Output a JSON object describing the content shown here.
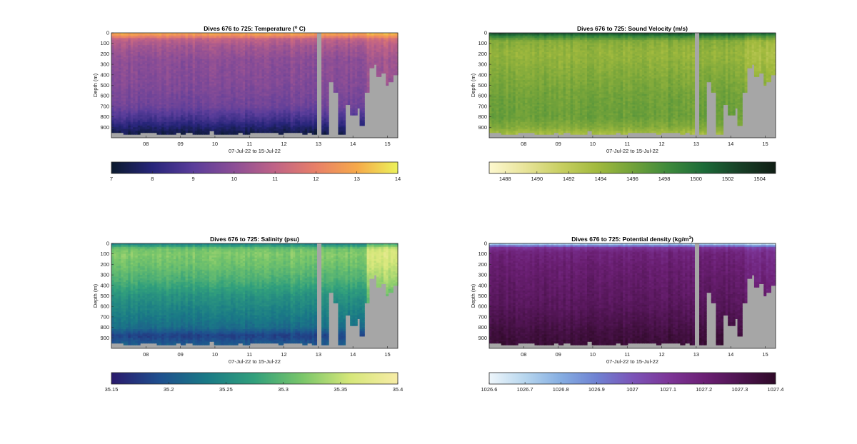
{
  "figure": {
    "x_axis_label": "07-Jul-22 to 15-Jul-22",
    "y_axis_label": "Depth (m)",
    "x_tick_labels": [
      "08",
      "09",
      "10",
      "11",
      "12",
      "13",
      "14",
      "15"
    ],
    "y_tick_labels": [
      "0",
      "100",
      "200",
      "300",
      "400",
      "500",
      "600",
      "700",
      "800",
      "900"
    ]
  },
  "chart_data": [
    {
      "type": "heatmap",
      "title": "Dives 676 to 725: Temperature (",
      "title_sup": "o",
      "title_tail": " C)",
      "variable": "temperature",
      "xlabel": "07-Jul-22 to 15-Jul-22",
      "ylabel": "Depth (m)",
      "x_range_days": [
        7.0,
        15.3
      ],
      "ylim": [
        0,
        1000
      ],
      "x_ticks": [
        8,
        9,
        10,
        11,
        12,
        13,
        14,
        15
      ],
      "y_ticks": [
        0,
        100,
        200,
        300,
        400,
        500,
        600,
        700,
        800,
        900
      ],
      "colorbar": {
        "range": [
          7,
          14
        ],
        "ticks": [
          7,
          8,
          9,
          10,
          11,
          12,
          13,
          14
        ],
        "tick_labels": [
          "7",
          "8",
          "9",
          "10",
          "11",
          "12",
          "13",
          "14"
        ],
        "colors": [
          "#0b1a2e",
          "#27257a",
          "#5a3d9a",
          "#8c4e96",
          "#c06386",
          "#e88068",
          "#f6a94a",
          "#ecf25a"
        ]
      },
      "profile": {
        "depth": [
          0,
          30,
          60,
          120,
          250,
          500,
          700,
          800,
          850,
          900,
          950,
          1000
        ],
        "value": [
          13.0,
          12.3,
          11.0,
          10.5,
          10.0,
          9.8,
          9.4,
          8.7,
          8.3,
          7.8,
          7.4,
          7.2
        ]
      }
    },
    {
      "type": "heatmap",
      "title": "Dives 676 to 725: Sound Velocity (m/s)",
      "title_sup": "",
      "title_tail": "",
      "variable": "sound_velocity",
      "xlabel": "07-Jul-22 to 15-Jul-22",
      "ylabel": "Depth (m)",
      "x_range_days": [
        7.0,
        15.3
      ],
      "ylim": [
        0,
        1000
      ],
      "x_ticks": [
        8,
        9,
        10,
        11,
        12,
        13,
        14,
        15
      ],
      "y_ticks": [
        0,
        100,
        200,
        300,
        400,
        500,
        600,
        700,
        800,
        900
      ],
      "colorbar": {
        "range": [
          1487,
          1505
        ],
        "ticks": [
          1488,
          1490,
          1492,
          1494,
          1496,
          1498,
          1500,
          1502,
          1504
        ],
        "tick_labels": [
          "1488",
          "1490",
          "1492",
          "1494",
          "1496",
          "1498",
          "1500",
          "1502",
          "1504"
        ],
        "colors": [
          "#fdf8cf",
          "#e8e49a",
          "#c8cf62",
          "#a2ba3e",
          "#72a23a",
          "#3e8a3c",
          "#1c6a38",
          "#173f26",
          "#101d14"
        ]
      },
      "profile": {
        "depth": [
          0,
          15,
          40,
          80,
          200,
          400,
          600,
          800,
          900,
          960,
          1000
        ],
        "value": [
          1503.0,
          1500.5,
          1498.0,
          1495.0,
          1494.3,
          1495.2,
          1496.0,
          1496.3,
          1495.2,
          1493.5,
          1492.0
        ]
      }
    },
    {
      "type": "heatmap",
      "title": "Dives 676 to 725: Salinity (psu)",
      "title_sup": "",
      "title_tail": "",
      "variable": "salinity",
      "xlabel": "07-Jul-22 to 15-Jul-22",
      "ylabel": "Depth (m)",
      "x_range_days": [
        7.0,
        15.3
      ],
      "ylim": [
        0,
        1000
      ],
      "x_ticks": [
        8,
        9,
        10,
        11,
        12,
        13,
        14,
        15
      ],
      "y_ticks": [
        0,
        100,
        200,
        300,
        400,
        500,
        600,
        700,
        800,
        900
      ],
      "colorbar": {
        "range": [
          35.15,
          35.4
        ],
        "ticks": [
          35.15,
          35.2,
          35.25,
          35.3,
          35.35,
          35.4
        ],
        "tick_labels": [
          "35.15",
          "35.2",
          "35.25",
          "35.3",
          "35.35",
          "35.4"
        ],
        "colors": [
          "#2a1a6c",
          "#1f4f8e",
          "#1a7a86",
          "#32a07c",
          "#7ac66a",
          "#d6e77a",
          "#f7eca6"
        ]
      },
      "profile": {
        "depth": [
          0,
          20,
          50,
          100,
          200,
          350,
          500,
          650,
          800,
          880,
          950,
          1000
        ],
        "value": [
          35.23,
          35.27,
          35.31,
          35.32,
          35.31,
          35.29,
          35.26,
          35.24,
          35.22,
          35.18,
          35.2,
          35.21
        ]
      }
    },
    {
      "type": "heatmap",
      "title": "Dives 676 to 725: Potential density (kg/m",
      "title_sup": "3",
      "title_tail": ")",
      "variable": "potential_density",
      "xlabel": "07-Jul-22 to 15-Jul-22",
      "ylabel": "Depth (m)",
      "x_range_days": [
        7.0,
        15.3
      ],
      "ylim": [
        0,
        1000
      ],
      "x_ticks": [
        8,
        9,
        10,
        11,
        12,
        13,
        14,
        15
      ],
      "y_ticks": [
        0,
        100,
        200,
        300,
        400,
        500,
        600,
        700,
        800,
        900
      ],
      "colorbar": {
        "range": [
          1026.6,
          1027.4
        ],
        "ticks": [
          1026.6,
          1026.7,
          1026.8,
          1026.9,
          1027.0,
          1027.1,
          1027.2,
          1027.3,
          1027.4
        ],
        "tick_labels": [
          "1026.6",
          "1026.7",
          "1026.8",
          "1026.9",
          "1027",
          "1027.1",
          "1027.2",
          "1027.3",
          "1027.4"
        ],
        "colors": [
          "#eef6fb",
          "#b7d6ee",
          "#86aee2",
          "#6f82d2",
          "#7b55b8",
          "#7d3698",
          "#6c2075",
          "#4e1450",
          "#2f0a28"
        ]
      },
      "profile": {
        "depth": [
          0,
          15,
          40,
          80,
          200,
          400,
          600,
          750,
          850,
          950,
          1000
        ],
        "value": [
          1026.65,
          1026.85,
          1027.1,
          1027.18,
          1027.21,
          1027.24,
          1027.27,
          1027.31,
          1027.34,
          1027.36,
          1027.37
        ]
      }
    }
  ]
}
